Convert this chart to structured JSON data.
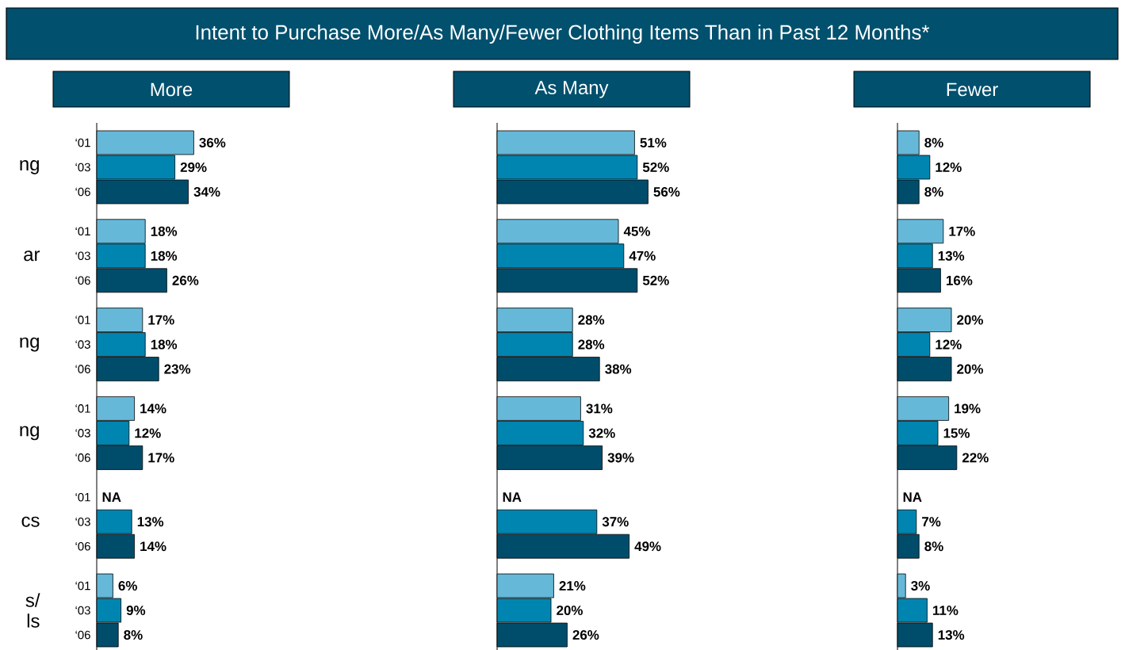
{
  "chart_data": [
    {
      "type": "bar",
      "orientation": "horizontal",
      "title": "More",
      "annotations": [
        "Intent to Purchase More/As Many/Fewer Clothing Items Than in Past 12 Months*"
      ],
      "tick_labels": "y",
      "categories": [
        "ng",
        "ar",
        "ng",
        "ng",
        "cs",
        "s/ ls"
      ],
      "series": [
        {
          "name": "‘01",
          "color": "#66b8d8",
          "values": [
            36,
            18,
            17,
            14,
            null,
            6
          ],
          "value_labels": [
            "36%",
            "18%",
            "17%",
            "14%",
            "NA",
            "6%"
          ]
        },
        {
          "name": "‘03",
          "color": "#0085b0",
          "values": [
            29,
            18,
            18,
            12,
            13,
            9
          ],
          "value_labels": [
            "29%",
            "18%",
            "18%",
            "12%",
            "13%",
            "9%"
          ]
        },
        {
          "name": "‘06",
          "color": "#004d6b",
          "values": [
            34,
            26,
            23,
            17,
            14,
            8
          ],
          "value_labels": [
            "34%",
            "26%",
            "23%",
            "17%",
            "14%",
            "8%"
          ]
        }
      ]
    },
    {
      "type": "bar",
      "orientation": "horizontal",
      "title": "As Many",
      "tick_labels": false,
      "categories": [
        null,
        null,
        null,
        null,
        null,
        null
      ],
      "series": [
        {
          "color": "#66b8d8",
          "values": [
            51,
            45,
            28,
            31,
            null,
            21
          ],
          "value_labels": [
            "51%",
            "45%",
            "28%",
            "31%",
            "NA",
            "21%"
          ]
        },
        {
          "color": "#0085b0",
          "values": [
            52,
            47,
            28,
            32,
            37,
            20
          ],
          "value_labels": [
            "52%",
            "47%",
            "28%",
            "32%",
            "37%",
            "20%"
          ]
        },
        {
          "color": "#004d6b",
          "values": [
            56,
            52,
            38,
            39,
            49,
            26
          ],
          "value_labels": [
            "56%",
            "52%",
            "38%",
            "39%",
            "49%",
            "26%"
          ]
        }
      ]
    },
    {
      "type": "bar",
      "orientation": "horizontal",
      "title": "Fewer",
      "tick_labels": false,
      "categories": [
        null,
        null,
        null,
        null,
        null,
        null
      ],
      "series": [
        {
          "color": "#66b8d8",
          "values": [
            8,
            17,
            20,
            19,
            null,
            3
          ],
          "value_labels": [
            "8%",
            "17%",
            "20%",
            "19%",
            "NA",
            "3%"
          ]
        },
        {
          "color": "#0085b0",
          "values": [
            12,
            13,
            12,
            15,
            7,
            11
          ],
          "value_labels": [
            "12%",
            "13%",
            "12%",
            "15%",
            "7%",
            "11%"
          ]
        },
        {
          "color": "#004d6b",
          "values": [
            8,
            16,
            20,
            22,
            8,
            13
          ],
          "value_labels": [
            "8%",
            "16%",
            "20%",
            "22%",
            "8%",
            "13%"
          ]
        }
      ]
    }
  ]
}
